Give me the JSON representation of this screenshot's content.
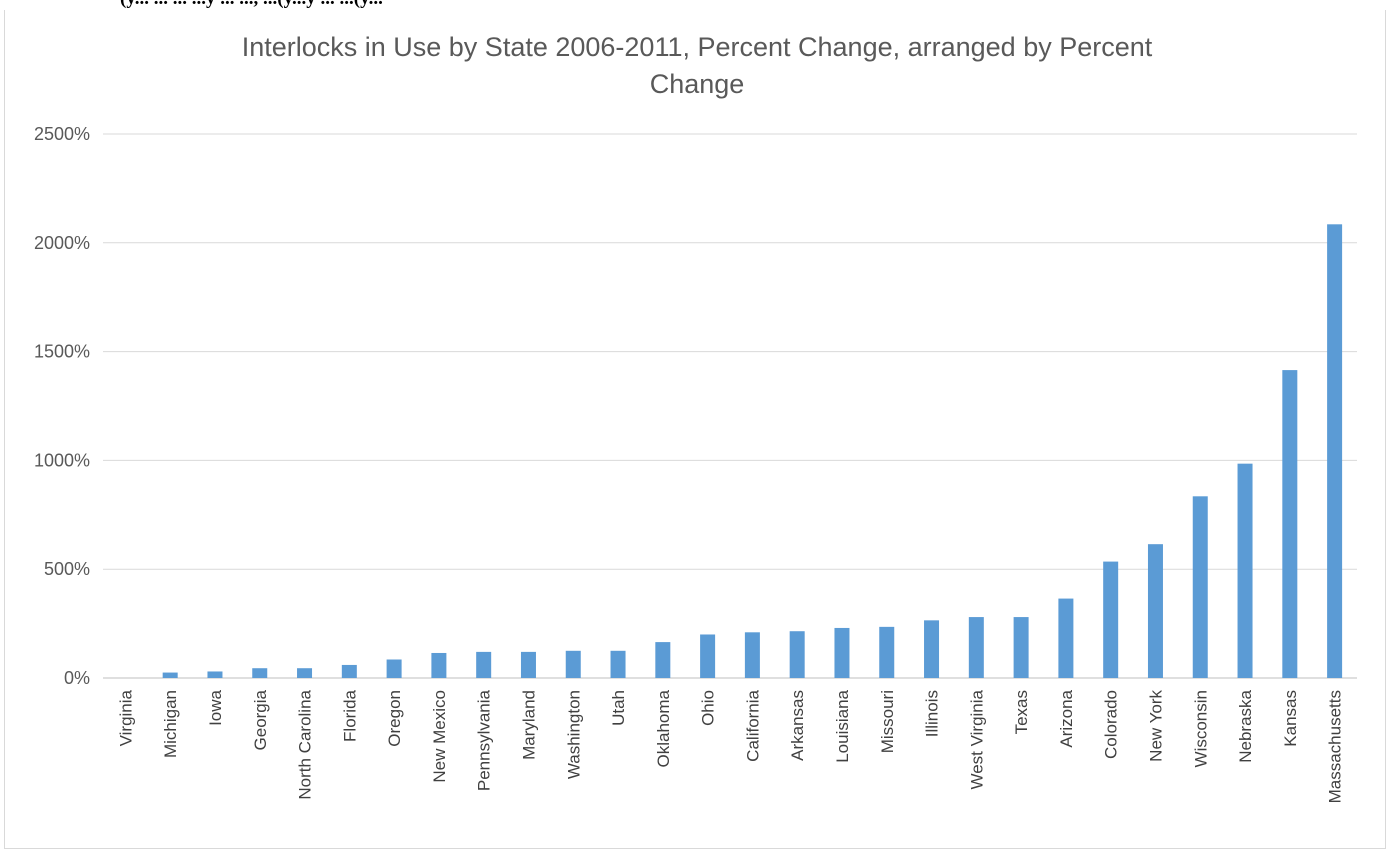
{
  "top_cut_text": "(y... ... ... ...y ... ..., ...(y...y ... ...(y...",
  "chart_data": {
    "type": "bar",
    "title": "Interlocks in Use by State 2006-2011, Percent Change, arranged by Percent Change",
    "title_lines": [
      "Interlocks in Use by State 2006-2011, Percent Change, arranged by Percent",
      "Change"
    ],
    "xlabel": "",
    "ylabel": "",
    "ylim": [
      0,
      2500
    ],
    "yticks": [
      0,
      500,
      1000,
      1500,
      2000,
      2500
    ],
    "ytick_labels": [
      "0%",
      "500%",
      "1000%",
      "1500%",
      "2000%",
      "2500%"
    ],
    "grid": true,
    "legend": "none",
    "bar_color": "#5b9bd5",
    "categories": [
      "Virginia",
      "Michigan",
      "Iowa",
      "Georgia",
      "North Carolina",
      "Florida",
      "Oregon",
      "New Mexico",
      "Pennsylvania",
      "Maryland",
      "Washington",
      "Utah",
      "Oklahoma",
      "Ohio",
      "California",
      "Arkansas",
      "Louisiana",
      "Missouri",
      "Illinois",
      "West Virginia",
      "Texas",
      "Arizona",
      "Colorado",
      "New York",
      "Wisconsin",
      "Nebraska",
      "Kansas",
      "Massachusetts"
    ],
    "values": [
      0,
      25,
      30,
      45,
      45,
      60,
      85,
      115,
      120,
      120,
      125,
      125,
      165,
      200,
      210,
      215,
      230,
      235,
      265,
      280,
      280,
      365,
      535,
      615,
      835,
      985,
      1415,
      2085
    ]
  }
}
